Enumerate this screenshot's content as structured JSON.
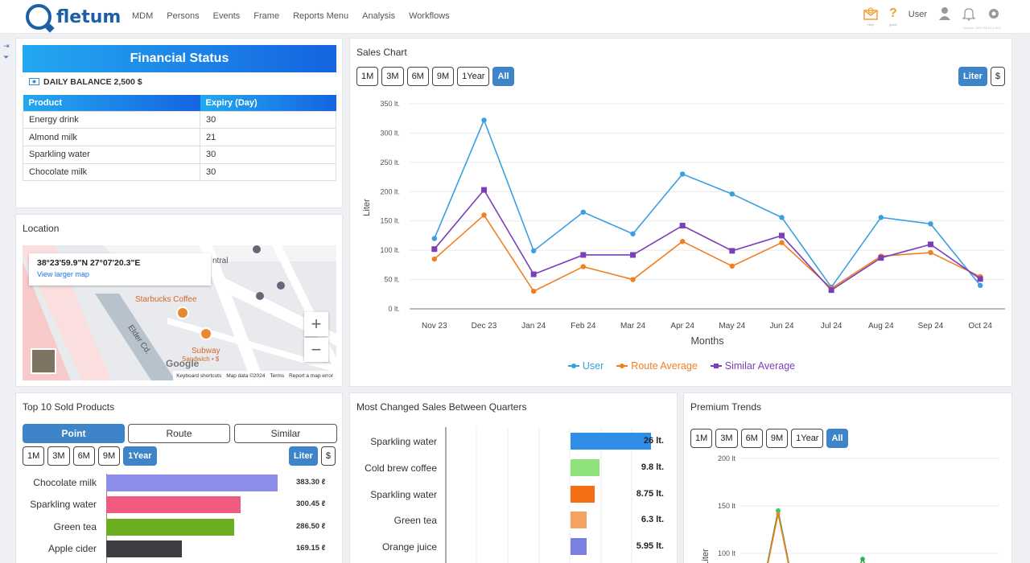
{
  "app": {
    "logo_text": "fletum"
  },
  "nav": [
    "MDM",
    "Persons",
    "Events",
    "Frame",
    "Reports Menu",
    "Analysis",
    "Workflows"
  ],
  "topright": {
    "help_label": "Help",
    "guide_label": "guide",
    "guide_glyph": "?",
    "user_label": "User",
    "version": "Version: DEV 43.8.14-HF1"
  },
  "financial": {
    "title": "Financial Status",
    "daily_balance": "DAILY BALANCE 2,500 $",
    "headers": [
      "Product",
      "Expiry (Day)"
    ],
    "rows": [
      [
        "Energy drink",
        "30"
      ],
      [
        "Almond milk",
        "21"
      ],
      [
        "Sparkling water",
        "30"
      ],
      [
        "Chocolate milk",
        "30"
      ]
    ]
  },
  "location": {
    "title": "Location",
    "coordinates": "38°23'59.9\"N 27°07'20.3\"E",
    "view_larger": "View larger map",
    "poi_starbucks": "Starbucks Coffee",
    "poi_subway": "Subway",
    "poi_subway_sub": "Sandwich • $",
    "poi_central": "ntral",
    "street": "Elder Cd.",
    "zoom_in": "+",
    "zoom_out": "−",
    "google": "Google",
    "footer": [
      "Keyboard shortcuts",
      "Map data ©2024",
      "Terms",
      "Report a map error"
    ]
  },
  "sales_chart": {
    "title": "Sales Chart",
    "ranges": [
      "1M",
      "3M",
      "6M",
      "9M",
      "1Year",
      "All"
    ],
    "active_range": "All",
    "units": [
      "Liter",
      "$"
    ],
    "active_unit": "Liter"
  },
  "chart_data": [
    {
      "type": "line",
      "title": "Sales Chart",
      "xlabel": "Months",
      "ylabel": "Liter",
      "categories": [
        "Nov 23",
        "Dec 23",
        "Jan 24",
        "Feb 24",
        "Mar 24",
        "Apr 24",
        "May 24",
        "Jun 24",
        "Jul 24",
        "Aug 24",
        "Sep 24",
        "Oct 24"
      ],
      "y_ticks": [
        "0 lt.",
        "50 lt.",
        "100 lt.",
        "150 lt.",
        "200 lt.",
        "250 lt.",
        "300 lt.",
        "350 lt."
      ],
      "ylim": [
        0,
        350
      ],
      "legend": "bottom",
      "series": [
        {
          "name": "User",
          "color": "#3a9fe0",
          "marker": "circle",
          "values": [
            120,
            322,
            99,
            165,
            128,
            230,
            196,
            156,
            37,
            156,
            145,
            40
          ]
        },
        {
          "name": "Route Average",
          "color": "#f07f23",
          "marker": "circle",
          "values": [
            85,
            160,
            30,
            72,
            50,
            115,
            73,
            113,
            35,
            90,
            96,
            55
          ]
        },
        {
          "name": "Similar Average",
          "color": "#7a3fb8",
          "marker": "square",
          "values": [
            102,
            203,
            59,
            92,
            92,
            142,
            99,
            125,
            32,
            87,
            110,
            51
          ]
        }
      ]
    },
    {
      "type": "bar",
      "title": "Top 10 Sold Products",
      "categories": [
        "Chocolate milk",
        "Sparkling water",
        "Green tea",
        "Apple cider"
      ],
      "values": [
        383.3,
        300.45,
        286.5,
        169.15
      ],
      "labels": [
        "383.30 ℓ",
        "300.45 ℓ",
        "286.50 ℓ",
        "169.15 ℓ"
      ],
      "colors": [
        "#8b8de8",
        "#ef5a7e",
        "#6bae1f",
        "#3d3d44"
      ],
      "xlim": [
        0,
        400
      ]
    },
    {
      "type": "bar",
      "title": "Most Changed Sales Between Quarters",
      "categories": [
        "Sparkling water",
        "Cold brew coffee",
        "Sparkling water",
        "Green tea",
        "Orange juice"
      ],
      "values": [
        26,
        9.8,
        8.75,
        6.3,
        5.95
      ],
      "labels": [
        "26 lt.",
        "9.8 lt.",
        "8.75 lt.",
        "6.3 lt.",
        "5.95 lt."
      ],
      "colors": [
        "#2f8ee8",
        "#8fe37a",
        "#f56d14",
        "#f4a25f",
        "#7c7fe2"
      ]
    },
    {
      "type": "line",
      "title": "Premium Trends",
      "ylabel": "Liter",
      "y_ticks": [
        "100 lt",
        "150 lt",
        "200 lt"
      ],
      "ylim": [
        100,
        200
      ]
    }
  ],
  "top10": {
    "title": "Top 10 Sold Products",
    "segments": [
      "Point",
      "Route",
      "Similar"
    ],
    "active_segment": "Point",
    "ranges": [
      "1M",
      "3M",
      "6M",
      "9M",
      "1Year"
    ],
    "active_range": "1Year",
    "units": [
      "Liter",
      "$"
    ],
    "active_unit": "Liter"
  },
  "most_changed": {
    "title": "Most Changed Sales Between Quarters"
  },
  "premium": {
    "title": "Premium Trends",
    "ranges": [
      "1M",
      "3M",
      "6M",
      "9M",
      "1Year",
      "All"
    ],
    "active_range": "All"
  }
}
